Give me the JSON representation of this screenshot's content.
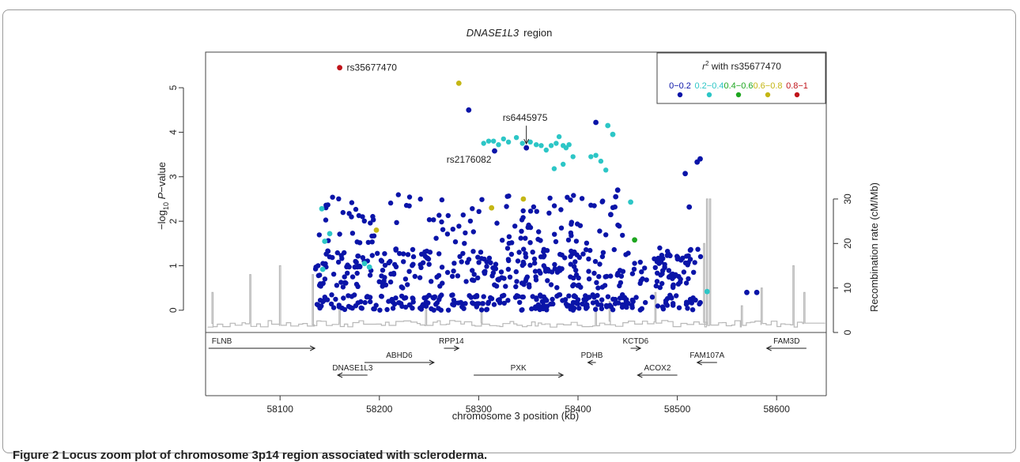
{
  "caption": {
    "label": "Figure 2",
    "text": "Locus zoom plot of chromosome 3p14 region associated with scleroderma."
  },
  "chart_data": {
    "type": "scatter",
    "title_gene": "DNASE1L3",
    "title_suffix": "region",
    "xlabel": "chromosome 3 position (kb)",
    "ylabel_left": "-log10 P-value",
    "ylabel_left_parts": [
      "−log",
      "10",
      " ",
      "P",
      "−value"
    ],
    "ylabel_right": "Recombination rate (cM/Mb)",
    "xlim": [
      58025,
      58650
    ],
    "ylim": [
      -0.5,
      5.8
    ],
    "x_ticks": [
      58100,
      58200,
      58300,
      58400,
      58500,
      58600
    ],
    "y_ticks": [
      0,
      1,
      2,
      3,
      4,
      5
    ],
    "y2_ticks": [
      0,
      10,
      20,
      30
    ],
    "y2_scale_note": "right axis 0 at -log10P = -0.5, 10 cM/Mb = 1 unit",
    "legend": {
      "title_prefix": "r",
      "title_sup": "2",
      "title_suffix": " with rs35677470",
      "placement": "top-right",
      "bins": [
        {
          "label": "0−0.2",
          "color": "#0a14a8"
        },
        {
          "label": "0.2−0.4",
          "color": "#2cc6c6"
        },
        {
          "label": "0.4−0.6",
          "color": "#1ea620"
        },
        {
          "label": "0.6−0.8",
          "color": "#c4b614"
        },
        {
          "label": "0.8−1",
          "color": "#c0141a"
        }
      ]
    },
    "annotations": [
      {
        "text": "rs35677470",
        "x": 58160,
        "y": 5.45
      },
      {
        "text": "rs6445975",
        "x": 58348,
        "y": 3.65,
        "arrow": true
      },
      {
        "text": "rs2176082",
        "x": 58316,
        "y": 3.6
      }
    ],
    "highlight_points": [
      {
        "x": 58160,
        "y": 5.45,
        "r2_bin": 4
      },
      {
        "x": 58280,
        "y": 5.1,
        "r2_bin": 3
      },
      {
        "x": 58290,
        "y": 4.5,
        "r2_bin": 0
      },
      {
        "x": 58348,
        "y": 3.65,
        "r2_bin": 0
      },
      {
        "x": 58316,
        "y": 3.58,
        "r2_bin": 0
      },
      {
        "x": 58418,
        "y": 4.22,
        "r2_bin": 0
      },
      {
        "x": 58508,
        "y": 3.07,
        "r2_bin": 0
      },
      {
        "x": 58520,
        "y": 3.33,
        "r2_bin": 0
      },
      {
        "x": 58523,
        "y": 3.4,
        "r2_bin": 0
      },
      {
        "x": 58512,
        "y": 2.32,
        "r2_bin": 0
      },
      {
        "x": 58440,
        "y": 2.7,
        "r2_bin": 0
      },
      {
        "x": 58438,
        "y": 2.55,
        "r2_bin": 0
      },
      {
        "x": 58433,
        "y": 2.15,
        "r2_bin": 0
      },
      {
        "x": 58580,
        "y": 0.4,
        "r2_bin": 0
      },
      {
        "x": 58570,
        "y": 0.4,
        "r2_bin": 0
      },
      {
        "x": 58430,
        "y": 4.15,
        "r2_bin": 1
      },
      {
        "x": 58435,
        "y": 3.95,
        "r2_bin": 1
      },
      {
        "x": 58453,
        "y": 2.43,
        "r2_bin": 1
      },
      {
        "x": 58530,
        "y": 0.42,
        "r2_bin": 1
      },
      {
        "x": 58142,
        "y": 2.28,
        "r2_bin": 1
      },
      {
        "x": 58150,
        "y": 1.72,
        "r2_bin": 1
      },
      {
        "x": 58145,
        "y": 1.55,
        "r2_bin": 1
      },
      {
        "x": 58185,
        "y": 1.05,
        "r2_bin": 1
      },
      {
        "x": 58190,
        "y": 0.97,
        "r2_bin": 1
      },
      {
        "x": 58143,
        "y": 0.92,
        "r2_bin": 1
      },
      {
        "x": 58457,
        "y": 1.58,
        "r2_bin": 2
      },
      {
        "x": 58313,
        "y": 2.3,
        "r2_bin": 3
      },
      {
        "x": 58345,
        "y": 2.5,
        "r2_bin": 3
      },
      {
        "x": 58197,
        "y": 1.8,
        "r2_bin": 3
      }
    ],
    "cyan_band": [
      [
        58305,
        3.75
      ],
      [
        58310,
        3.8
      ],
      [
        58315,
        3.8
      ],
      [
        58320,
        3.72
      ],
      [
        58325,
        3.85
      ],
      [
        58330,
        3.78
      ],
      [
        58338,
        3.88
      ],
      [
        58344,
        3.75
      ],
      [
        58352,
        3.78
      ],
      [
        58358,
        3.72
      ],
      [
        58363,
        3.7
      ],
      [
        58368,
        3.6
      ],
      [
        58373,
        3.7
      ],
      [
        58378,
        3.75
      ],
      [
        58381,
        3.9
      ],
      [
        58385,
        3.7
      ],
      [
        58388,
        3.65
      ],
      [
        58391,
        3.72
      ],
      [
        58376,
        3.18
      ],
      [
        58385,
        3.28
      ],
      [
        58395,
        3.45
      ],
      [
        58413,
        3.45
      ],
      [
        58418,
        3.48
      ],
      [
        58423,
        3.35
      ],
      [
        58428,
        3.15
      ]
    ],
    "gene_tracks": [
      {
        "name": "FLNB",
        "start": 58028,
        "end": 58135,
        "strand": "+",
        "row": 0
      },
      {
        "name": "RPP14",
        "start": 58265,
        "end": 58280,
        "strand": "+",
        "row": 0
      },
      {
        "name": "KCTD6",
        "start": 58453,
        "end": 58463,
        "strand": "+",
        "row": 0
      },
      {
        "name": "FAM3D",
        "start": 58590,
        "end": 58630,
        "strand": "-",
        "row": 0
      },
      {
        "name": "ABHD6",
        "start": 58185,
        "end": 58255,
        "strand": "+",
        "row": 1
      },
      {
        "name": "PDHB",
        "start": 58410,
        "end": 58418,
        "strand": "-",
        "row": 1
      },
      {
        "name": "FAM107A",
        "start": 58520,
        "end": 58540,
        "strand": "-",
        "row": 1
      },
      {
        "name": "DNASE1L3",
        "start": 58158,
        "end": 58188,
        "strand": "-",
        "row": 2
      },
      {
        "name": "PXK",
        "start": 58295,
        "end": 58385,
        "strand": "+",
        "row": 2
      },
      {
        "name": "ACOX2",
        "start": 58460,
        "end": 58500,
        "strand": "-",
        "row": 2
      }
    ],
    "recombination_peaks": [
      [
        58032,
        9
      ],
      [
        58070,
        13
      ],
      [
        58100,
        15
      ],
      [
        58133,
        13
      ],
      [
        58160,
        6
      ],
      [
        58247,
        6
      ],
      [
        58303,
        7
      ],
      [
        58418,
        6
      ],
      [
        58432,
        7
      ],
      [
        58478,
        9
      ],
      [
        58527,
        20
      ],
      [
        58530,
        30
      ],
      [
        58533,
        30
      ],
      [
        58565,
        6
      ],
      [
        58585,
        10
      ],
      [
        58617,
        15
      ],
      [
        58628,
        9
      ]
    ],
    "dense_clusters": [
      {
        "x": [
          58135,
          58525
        ],
        "y": [
          0.0,
          0.35
        ],
        "n": 260
      },
      {
        "x": [
          58135,
          58525
        ],
        "y": [
          0.5,
          1.4
        ],
        "n": 330
      },
      {
        "x": [
          58135,
          58445
        ],
        "y": [
          1.5,
          2.6
        ],
        "n": 110
      }
    ]
  }
}
